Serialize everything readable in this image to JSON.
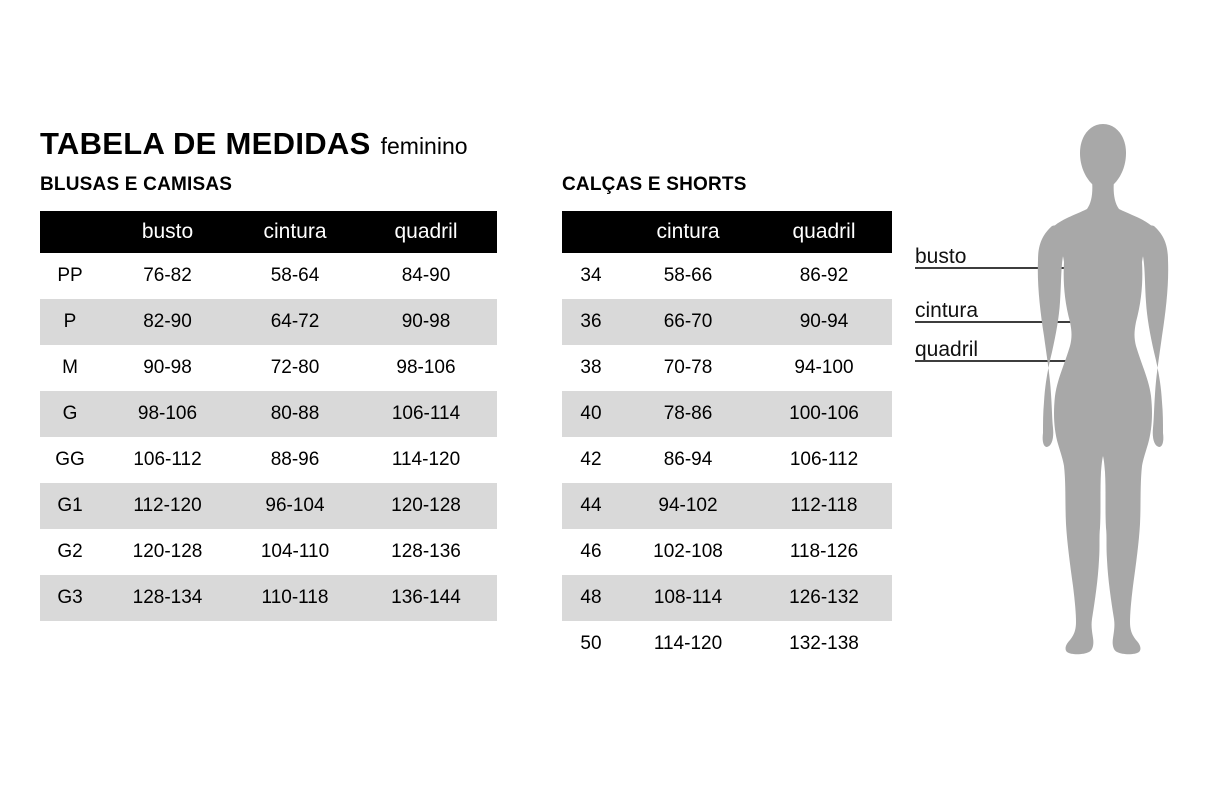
{
  "page": {
    "title": "TABELA DE MEDIDAS",
    "subtitle": "feminino"
  },
  "tables": [
    {
      "heading": "BLUSAS E CAMISAS",
      "columns": [
        "",
        "busto",
        "cintura",
        "quadril"
      ],
      "rows": [
        [
          "PP",
          "76-82",
          "58-64",
          "84-90"
        ],
        [
          "P",
          "82-90",
          "64-72",
          "90-98"
        ],
        [
          "M",
          "90-98",
          "72-80",
          "98-106"
        ],
        [
          "G",
          "98-106",
          "80-88",
          "106-114"
        ],
        [
          "GG",
          "106-112",
          "88-96",
          "114-120"
        ],
        [
          "G1",
          "112-120",
          "96-104",
          "120-128"
        ],
        [
          "G2",
          "120-128",
          "104-110",
          "128-136"
        ],
        [
          "G3",
          "128-134",
          "110-118",
          "136-144"
        ]
      ]
    },
    {
      "heading": "CALÇAS E SHORTS",
      "columns": [
        "",
        "cintura",
        "quadril"
      ],
      "rows": [
        [
          "34",
          "58-66",
          "86-92"
        ],
        [
          "36",
          "66-70",
          "90-94"
        ],
        [
          "38",
          "70-78",
          "94-100"
        ],
        [
          "40",
          "78-86",
          "100-106"
        ],
        [
          "42",
          "86-94",
          "106-112"
        ],
        [
          "44",
          "94-102",
          "112-118"
        ],
        [
          "46",
          "102-108",
          "118-126"
        ],
        [
          "48",
          "108-114",
          "126-132"
        ],
        [
          "50",
          "114-120",
          "132-138"
        ]
      ]
    }
  ],
  "figure": {
    "labels": [
      "busto",
      "cintura",
      "quadril"
    ],
    "silhouette_color": "#a8a8a8",
    "line_color": "#3d3d3d"
  },
  "colors": {
    "header_bg": "#000000",
    "header_text": "#ffffff",
    "stripe": "#d9d9d9",
    "background": "#ffffff"
  }
}
